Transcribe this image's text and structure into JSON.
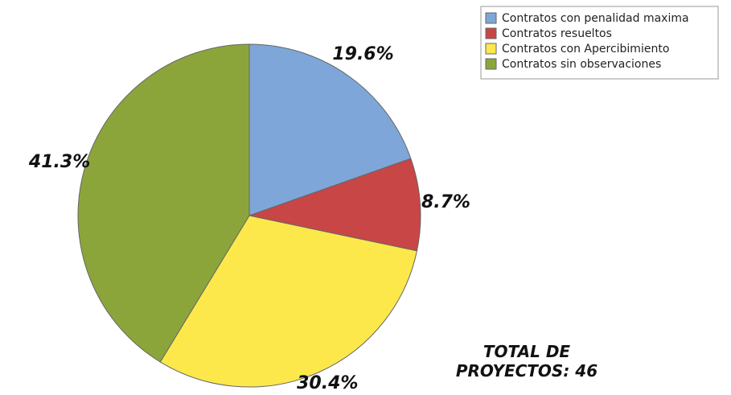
{
  "chart_data": {
    "type": "pie",
    "categories": [
      "Contratos con penalidad maxima",
      "Contratos resueltos",
      "Contratos con Apercibimiento",
      "Contratos sin observaciones"
    ],
    "values": [
      19.6,
      8.7,
      30.4,
      41.3
    ],
    "value_labels": [
      "19.6%",
      "8.7%",
      "30.4%",
      "41.3%"
    ],
    "colors": [
      "#7ea6d8",
      "#c94646",
      "#fde84b",
      "#8ba53b"
    ],
    "annotation": "TOTAL DE PROYECTOS: 46",
    "legend": "upper right"
  }
}
